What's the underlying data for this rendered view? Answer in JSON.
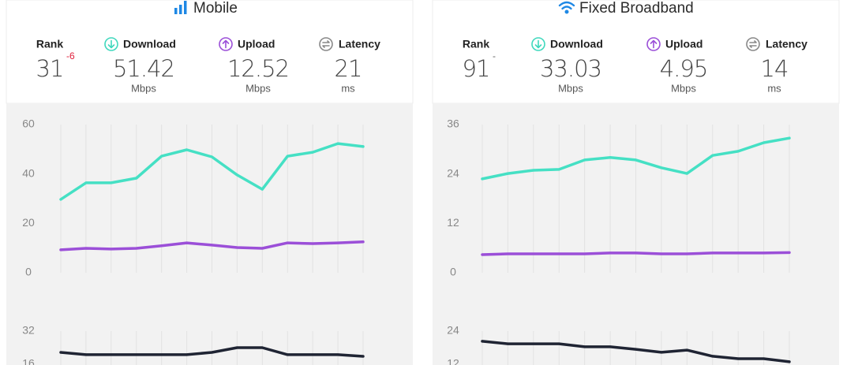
{
  "panels": [
    {
      "title": "Mobile",
      "stats": [
        {
          "label": "Rank",
          "value": 31,
          "change": -6
        },
        {
          "label": "Download",
          "value": 51.42,
          "unit": "Mbps"
        },
        {
          "label": "Upload",
          "value": 12.52,
          "unit": "Mbps"
        },
        {
          "label": "Latency",
          "value": 21,
          "unit": "ms"
        }
      ]
    },
    {
      "title": "Fixed Broadband",
      "stats": [
        {
          "label": "Rank",
          "value": 91,
          "change": "-"
        },
        {
          "label": "Download",
          "value": 33.03,
          "unit": "Mbps"
        },
        {
          "label": "Upload",
          "value": 4.95,
          "unit": "Mbps"
        },
        {
          "label": "Latency",
          "value": 14,
          "unit": "ms"
        }
      ]
    }
  ],
  "chart_data": [
    {
      "type": "line",
      "ylim": [
        0,
        60
      ],
      "yticks": [
        0,
        20,
        40,
        60
      ],
      "grid": true,
      "series": [
        {
          "color": "#45e0c4",
          "values": [
            29.7,
            36.4,
            36.4,
            38.3,
            47.2,
            49.8,
            46.9,
            39.6,
            33.8,
            47.2,
            48.8,
            52.3,
            51.1
          ]
        },
        {
          "color": "#9b4fd8",
          "values": [
            9.3,
            9.9,
            9.6,
            9.9,
            10.9,
            12.1,
            11.2,
            10.2,
            9.9,
            12.1,
            11.8,
            12.1,
            12.5
          ]
        }
      ]
    },
    {
      "type": "line",
      "ylim": [
        0,
        32
      ],
      "yticks": [
        16,
        32
      ],
      "grid": true,
      "series": [
        {
          "color": "#1f2433",
          "values": [
            21.7,
            20.6,
            20.6,
            20.6,
            20.6,
            20.6,
            21.7,
            24,
            24,
            20.6,
            20.6,
            20.6,
            19.8
          ]
        }
      ]
    },
    {
      "type": "line",
      "ylim": [
        0,
        36
      ],
      "yticks": [
        0,
        12,
        24,
        36
      ],
      "grid": true,
      "series": [
        {
          "color": "#45e0c4",
          "values": [
            22.8,
            24.1,
            24.9,
            25.1,
            27.4,
            28.0,
            27.4,
            25.5,
            24.1,
            28.5,
            29.5,
            31.6,
            32.7
          ]
        },
        {
          "color": "#9b4fd8",
          "values": [
            4.4,
            4.6,
            4.6,
            4.6,
            4.6,
            4.8,
            4.8,
            4.6,
            4.6,
            4.8,
            4.8,
            4.8,
            4.9
          ]
        }
      ]
    },
    {
      "type": "line",
      "ylim": [
        0,
        24
      ],
      "yticks": [
        12,
        24
      ],
      "grid": true,
      "series": [
        {
          "color": "#1f2433",
          "values": [
            20.3,
            19.4,
            19.4,
            19.4,
            18.3,
            18.3,
            17.4,
            16.3,
            17.1,
            14.9,
            14,
            14,
            12.9
          ]
        }
      ]
    }
  ]
}
